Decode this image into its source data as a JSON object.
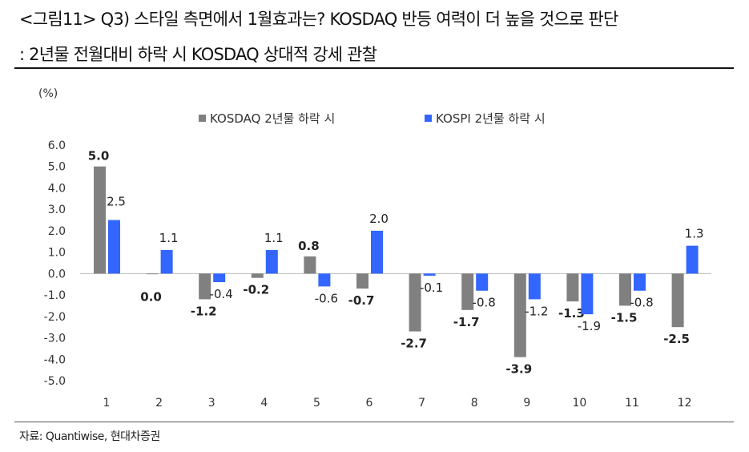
{
  "title_line1": "<그림11> Q3) 스타일 측면에서 1월효과는? KOSDAQ 반등 여력이 더 높을 것으로 판단",
  "title_line2": ": 2년물 전월대비 하락 시 KOSDAQ 상대적 강세 관찰",
  "source": "자료: Quantiwise, 현대차증권",
  "chart_data": {
    "type": "bar",
    "unit_label": "(%)",
    "categories": [
      "1",
      "2",
      "3",
      "4",
      "5",
      "6",
      "7",
      "8",
      "9",
      "10",
      "11",
      "12"
    ],
    "series": [
      {
        "name": "KOSDAQ 2년물 하락 시",
        "color": "#808080",
        "bold_labels": true,
        "values": [
          5.0,
          0.0,
          -1.2,
          -0.2,
          0.8,
          -0.7,
          -2.7,
          -1.7,
          -3.9,
          -1.3,
          -1.5,
          -2.5
        ]
      },
      {
        "name": "KOSPI 2년물 하락 시",
        "color": "#3366ff",
        "bold_labels": false,
        "values": [
          2.5,
          1.1,
          -0.4,
          1.1,
          -0.6,
          2.0,
          -0.1,
          -0.8,
          -1.2,
          -1.9,
          -0.8,
          1.3
        ]
      }
    ],
    "yticks": [
      6.0,
      5.0,
      4.0,
      3.0,
      2.0,
      1.0,
      0.0,
      -1.0,
      -2.0,
      -3.0,
      -4.0,
      -5.0
    ],
    "ylim": [
      -5.0,
      6.0
    ],
    "legend_position": "top",
    "grid": false
  }
}
